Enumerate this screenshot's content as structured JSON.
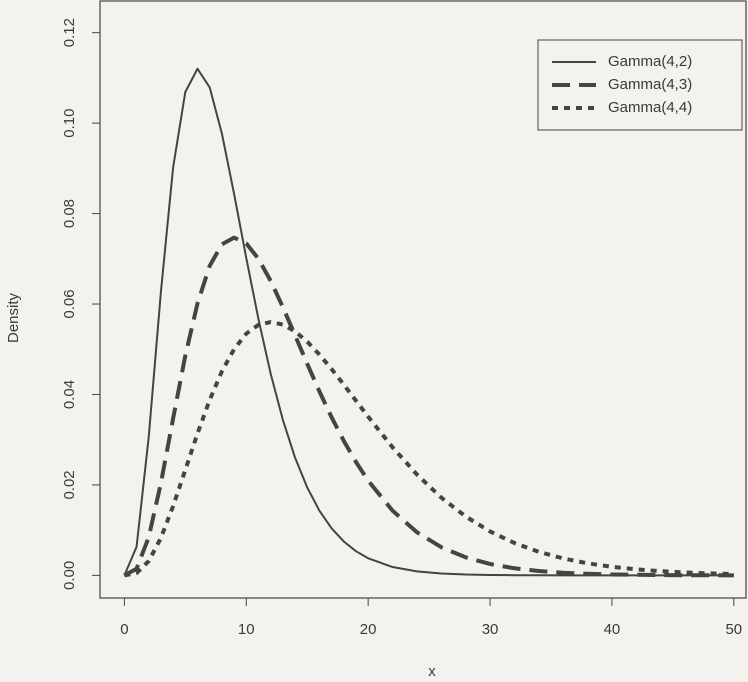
{
  "chart_data": {
    "type": "line",
    "x_label": "x",
    "y_label": "Density",
    "x": [
      0,
      1,
      2,
      3,
      4,
      5,
      6,
      7,
      8,
      9,
      10,
      11,
      12,
      13,
      14,
      15,
      16,
      17,
      18,
      19,
      20,
      22,
      24,
      26,
      28,
      30,
      32,
      34,
      36,
      38,
      40,
      42,
      44,
      46,
      48,
      50
    ],
    "series": [
      {
        "name": "Gamma(4,2)",
        "color": "#444444",
        "dash": "solid",
        "values": [
          0,
          0.00632,
          0.03066,
          0.06276,
          0.09023,
          0.10688,
          0.11202,
          0.10789,
          0.09768,
          0.08436,
          0.07019,
          0.05666,
          0.04462,
          0.03441,
          0.02606,
          0.01944,
          0.01431,
          0.01041,
          0.0075,
          0.00535,
          0.00378,
          0.00185,
          0.00088,
          0.00041,
          0.00019,
          9e-05,
          4e-05,
          2e-05,
          1e-05,
          0,
          0,
          0,
          0,
          0,
          0,
          0
        ]
      },
      {
        "name": "Gamma(4,3)",
        "color": "#444444",
        "dash": "dashed",
        "values": [
          0,
          0.00147,
          0.00845,
          0.02044,
          0.03471,
          0.04858,
          0.06015,
          0.06844,
          0.0732,
          0.07468,
          0.0734,
          0.07,
          0.06512,
          0.05933,
          0.05309,
          0.04679,
          0.04069,
          0.03497,
          0.02975,
          0.02507,
          0.02095,
          0.01431,
          0.00954,
          0.00623,
          0.00399,
          0.00252,
          0.00157,
          0.00097,
          0.00059,
          0.00036,
          0.00021,
          0.00013,
          7e-05,
          4e-05,
          3e-05,
          1e-05
        ]
      },
      {
        "name": "Gamma(4,4)",
        "color": "#444444",
        "dash": "dotted",
        "values": [
          0,
          0.00051,
          0.00316,
          0.0083,
          0.01533,
          0.02331,
          0.03138,
          0.0388,
          0.04511,
          0.05002,
          0.05344,
          0.0554,
          0.05601,
          0.05546,
          0.05395,
          0.05168,
          0.04884,
          0.04562,
          0.04218,
          0.03863,
          0.03509,
          0.02833,
          0.02231,
          0.0172,
          0.01303,
          0.00972,
          0.00716,
          0.00521,
          0.00375,
          0.00267,
          0.00189,
          0.00133,
          0.00093,
          0.00064,
          0.00044,
          0.0003
        ]
      }
    ],
    "xlim": [
      -2,
      51
    ],
    "xticks": [
      0,
      10,
      20,
      30,
      40,
      50
    ],
    "ylim": [
      -0.005,
      0.127
    ],
    "yticks": [
      {
        "value": 0,
        "label": "0.00"
      },
      {
        "value": 0.02,
        "label": "0.02"
      },
      {
        "value": 0.04,
        "label": "0.04"
      },
      {
        "value": 0.06,
        "label": "0.06"
      },
      {
        "value": 0.08,
        "label": "0.08"
      },
      {
        "value": 0.1,
        "label": "0.10"
      },
      {
        "value": 0.12,
        "label": "0.12"
      }
    ],
    "legend": "top-right",
    "grid": false
  }
}
